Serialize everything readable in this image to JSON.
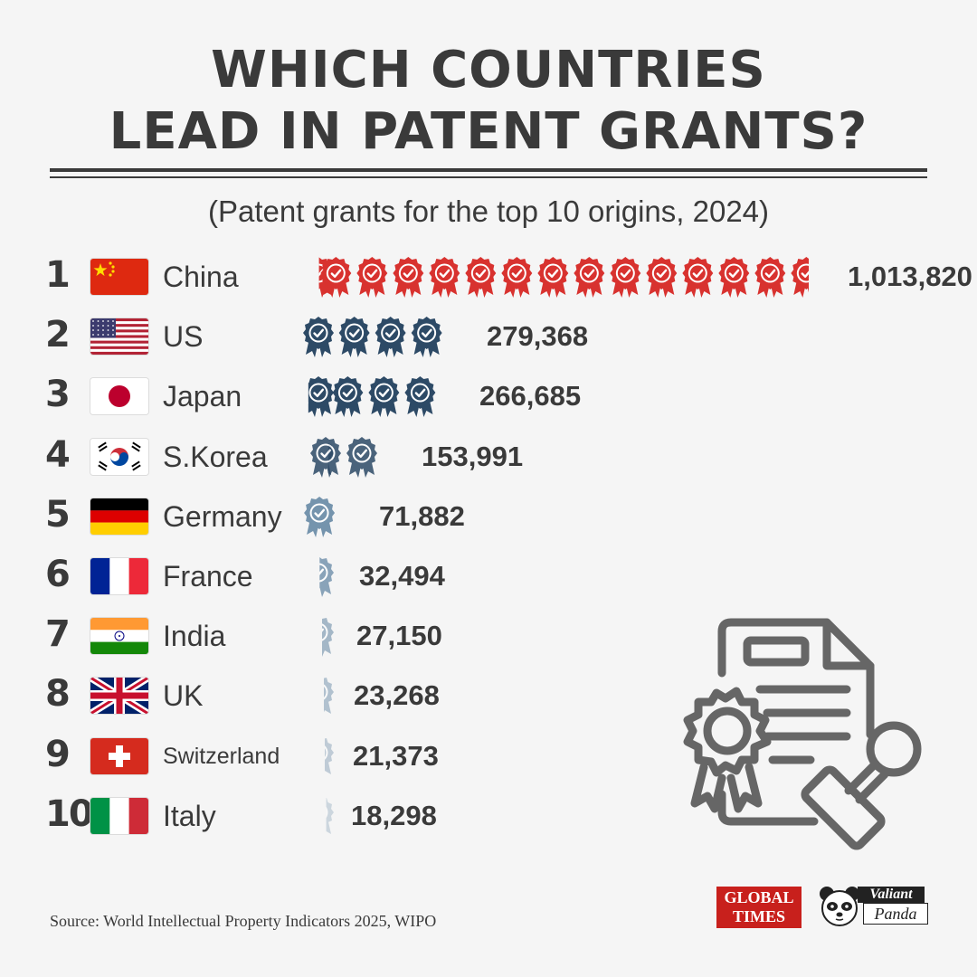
{
  "title_line1": "WHICH COUNTRIES",
  "title_line2": "LEAD IN PATENT GRANTS?",
  "subtitle": "(Patent grants for the top 10 origins, 2024)",
  "source": "Source: World Intellectual Property Indicators 2025, WIPO",
  "logos": {
    "global_times_line1": "GLOBAL",
    "global_times_line2": "TIMES",
    "valiant_line1": "Valiant",
    "valiant_line2": "Panda"
  },
  "colors": {
    "text": "#3a3a3a",
    "china_badge": "#d8322f",
    "badge_dark": "#2d4a66",
    "badge_light": "#6f8faa",
    "icon_line": "#666666",
    "background": "#f5f5f5"
  },
  "chart_data": {
    "type": "bar",
    "title": "WHICH COUNTRIES LEAD IN PATENT GRANTS?",
    "subtitle": "(Patent grants for the top 10 origins, 2024)",
    "mark": "ribbon-badge pictogram",
    "categories": [
      "China",
      "US",
      "Japan",
      "S.Korea",
      "Germany",
      "France",
      "India",
      "UK",
      "Switzerland",
      "Italy"
    ],
    "ranks": [
      "1",
      "2",
      "3",
      "4",
      "5",
      "6",
      "7",
      "8",
      "9",
      "10"
    ],
    "values": [
      1013820,
      279368,
      266685,
      153991,
      71882,
      32494,
      27150,
      23268,
      21373,
      18298
    ],
    "value_labels": [
      "1,013,820",
      "279,368",
      "266,685",
      "153,991",
      "71,882",
      "32,494",
      "27,150",
      "23,268",
      "21,373",
      "18,298"
    ],
    "flag_icons": [
      "china-flag-icon",
      "us-flag-icon",
      "japan-flag-icon",
      "south-korea-flag-icon",
      "germany-flag-icon",
      "france-flag-icon",
      "india-flag-icon",
      "uk-flag-icon",
      "switzerland-flag-icon",
      "italy-flag-icon"
    ]
  }
}
